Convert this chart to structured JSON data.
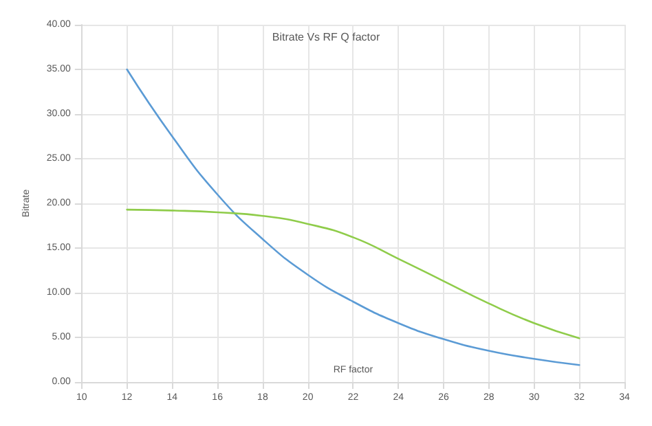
{
  "chart_data": {
    "type": "line",
    "title": "Bitrate Vs RF Q factor",
    "xlabel": "RF factor",
    "ylabel": "Bitrate",
    "x": [
      12,
      14,
      16,
      18,
      20,
      22,
      24,
      26,
      28,
      30,
      32
    ],
    "series": [
      {
        "color": "#5b9bd5",
        "values": [
          35,
          27.5,
          21,
          16,
          12,
          9,
          6.6,
          4.8,
          3.5,
          2.6,
          1.9
        ]
      },
      {
        "color": "#8fcc4a",
        "values": [
          19.3,
          19.2,
          19,
          18.6,
          17.7,
          16.2,
          13.8,
          11.3,
          8.8,
          6.6,
          4.9
        ]
      }
    ],
    "xlim": [
      10,
      34
    ],
    "xticks": [
      10,
      12,
      14,
      16,
      18,
      20,
      22,
      24,
      26,
      28,
      30,
      32,
      34
    ],
    "ylim": [
      0,
      40
    ],
    "yticks": [
      {
        "value": 0,
        "label": "0.00"
      },
      {
        "value": 5,
        "label": "5.00"
      },
      {
        "value": 10,
        "label": "10.00"
      },
      {
        "value": 15,
        "label": "15.00"
      },
      {
        "value": 20,
        "label": "20.00"
      },
      {
        "value": 25,
        "label": "25.00"
      },
      {
        "value": 30,
        "label": "30.00"
      },
      {
        "value": 35,
        "label": "35.00"
      },
      {
        "value": 40,
        "label": "40.00"
      }
    ],
    "grid": true,
    "marker": "none",
    "line_style": "solid"
  }
}
